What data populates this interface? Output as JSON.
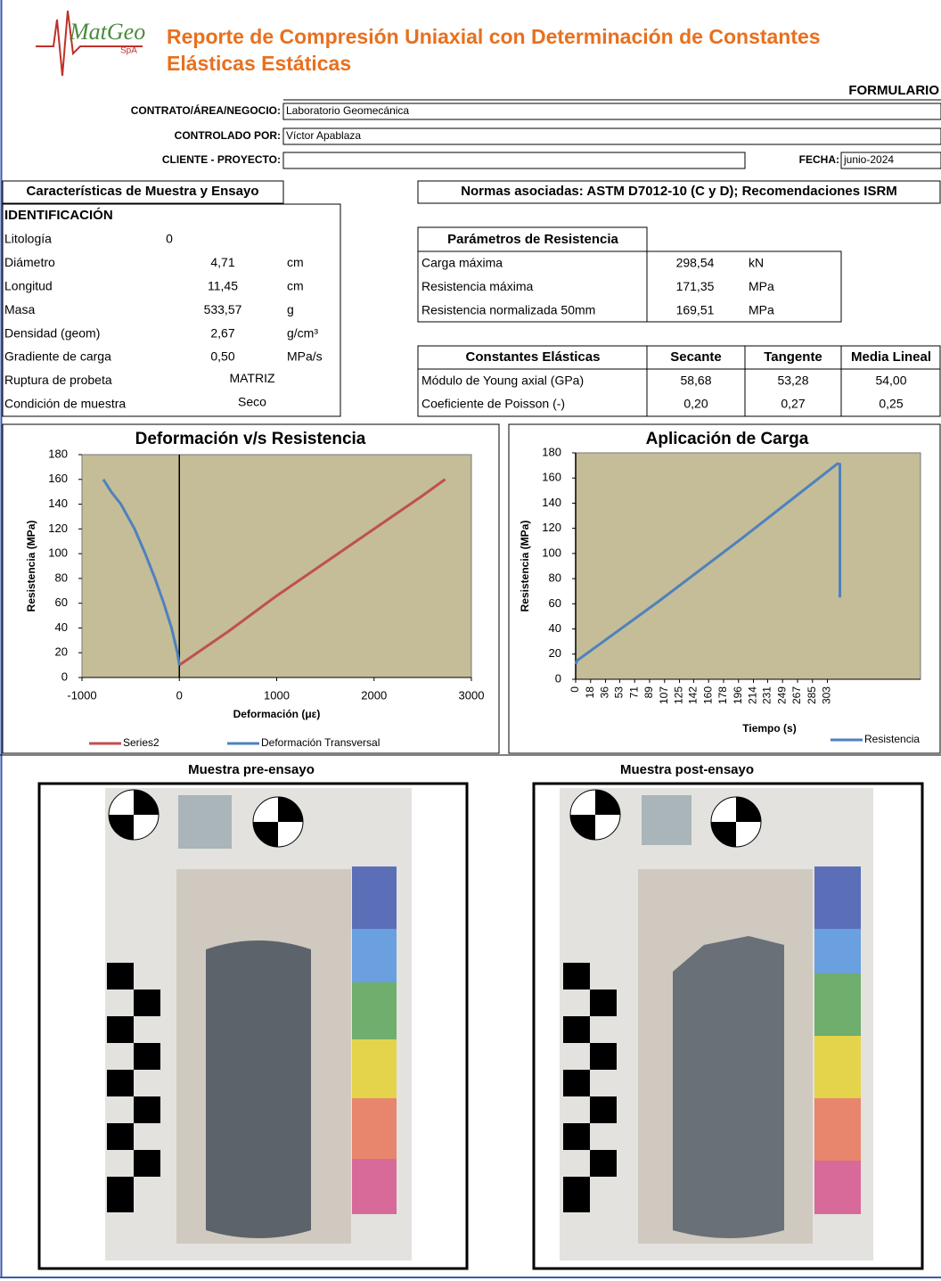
{
  "header": {
    "logo": "MatGeo",
    "logo_suffix": "SpA",
    "title_line1": "Reporte de Compresión Uniaxial con Determinación de Constantes",
    "title_line2": "Elásticas Estáticas",
    "form_label": "FORMULARIO"
  },
  "fields": [
    {
      "label": "CONTRATO/ÁREA/NEGOCIO:",
      "value": "Laboratorio Geomecánica"
    },
    {
      "label": "CONTROLADO POR:",
      "value": "Víctor Apablaza"
    },
    {
      "label": "CLIENTE - PROYECTO:"
    }
  ],
  "fecha": {
    "label": "FECHA:",
    "value": "junio-2024"
  },
  "sample": {
    "title": "Características de Muestra y Ensayo",
    "section": "IDENTIFICACIÓN",
    "rows": [
      [
        "Litología",
        "0"
      ],
      [
        "Diámetro",
        "4,71",
        "cm"
      ],
      [
        "Longitud",
        "11,45",
        "cm"
      ],
      [
        "Masa",
        "533,57",
        "g"
      ],
      [
        "Densidad (geom)",
        "2,67",
        "g/cm³"
      ],
      [
        "Gradiente de carga",
        "0,50",
        "MPa/s"
      ],
      [
        "Ruptura de probeta",
        "MATRIZ"
      ],
      [
        "Condición de muestra",
        "Seco"
      ]
    ]
  },
  "norms": "Normas asociadas: ASTM D7012-10 (C y D); Recomendaciones ISRM",
  "resistance": {
    "title": "Parámetros de Resistencia",
    "rows": [
      [
        "Carga máxima",
        "298,54",
        "kN"
      ],
      [
        "Resistencia máxima",
        "171,35",
        "MPa"
      ],
      [
        "Resistencia normalizada 50mm",
        "169,51",
        "MPa"
      ]
    ]
  },
  "elastic": {
    "header": [
      "Constantes Elásticas",
      "Secante",
      "Tangente",
      "Media Lineal"
    ],
    "rows": [
      [
        "Módulo de Young axial (GPa)",
        "58,68",
        "53,28",
        "54,00"
      ],
      [
        "Coeficiente de Poisson (-)",
        "0,20",
        "0,27",
        "0,25"
      ]
    ]
  },
  "photos": {
    "pre": "Muestra pre-ensayo",
    "post": "Muestra post-ensayo"
  },
  "chart_data": [
    {
      "type": "line",
      "title": "Deformación v/s Resistencia",
      "x_label": "Deformación (με)",
      "y_label": "Resistencia (MPa)",
      "xlim": [
        -1000,
        3000
      ],
      "xticks": [
        -1000,
        0,
        1000,
        2000,
        3000
      ],
      "ylim": [
        0,
        180
      ],
      "yticks": [
        0,
        20,
        40,
        60,
        80,
        100,
        120,
        140,
        160,
        180
      ],
      "grid": false,
      "legend": "bottom",
      "background": "#c4bd97",
      "series": [
        {
          "name": "Series2",
          "color": "#c0504d",
          "x": [
            0,
            500,
            1000,
            1500,
            2000,
            2500,
            2730
          ],
          "values": [
            10,
            37,
            66,
            93,
            120,
            147,
            160
          ]
        },
        {
          "name": "Deformación Transversal",
          "color": "#4f81bd",
          "x": [
            0,
            -20,
            -80,
            -160,
            -250,
            -350,
            -460,
            -600,
            -700,
            -780
          ],
          "values": [
            10,
            20,
            40,
            60,
            80,
            100,
            120,
            140,
            150,
            160
          ]
        }
      ]
    },
    {
      "type": "line",
      "title": "Aplicación de Carga",
      "x_label": "Tiempo (s)",
      "y_label": "Resistencia (MPa)",
      "xlim": [
        0,
        415
      ],
      "xticks": [
        0,
        18,
        36,
        53,
        71,
        89,
        107,
        125,
        142,
        160,
        178,
        196,
        214,
        231,
        249,
        267,
        285,
        303
      ],
      "ylim": [
        0,
        180
      ],
      "yticks": [
        0,
        20,
        40,
        60,
        80,
        100,
        120,
        140,
        160,
        180
      ],
      "grid": false,
      "legend": "bottom-right",
      "background": "#c4bd97",
      "series": [
        {
          "name": "Resistencia",
          "color": "#4f81bd",
          "x": [
            0,
            2,
            100,
            200,
            315,
            318,
            318
          ],
          "values": [
            12,
            15,
            62,
            112,
            171.35,
            171,
            65
          ]
        }
      ]
    }
  ]
}
